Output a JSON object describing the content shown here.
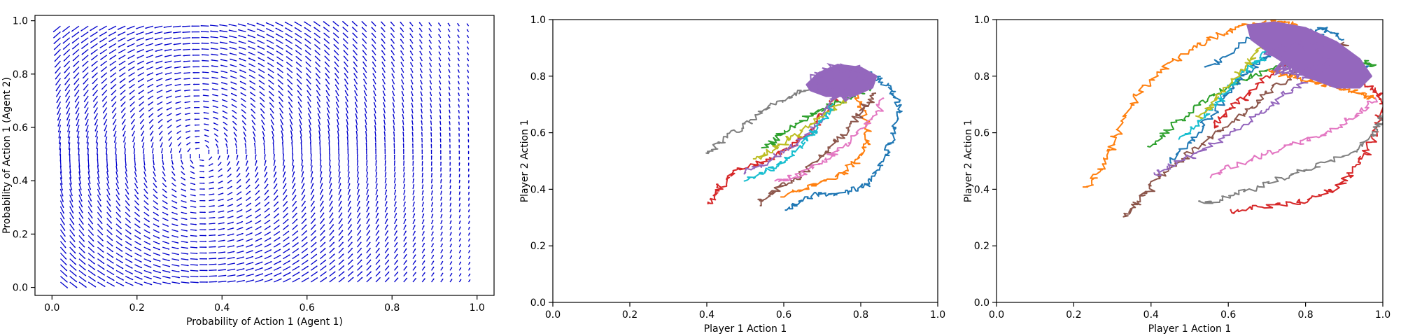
{
  "chart_data": [
    {
      "type": "quiver",
      "xlabel": "Probability of Action 1 (Agent 1)",
      "ylabel": "Probability of Action 1 (Agent 2)",
      "xlim": [
        -0.04,
        1.04
      ],
      "ylim": [
        -0.03,
        1.02
      ],
      "xticks": [
        0.0,
        0.2,
        0.4,
        0.6,
        0.8,
        1.0
      ],
      "xticklabels": [
        "0.0",
        "0.2",
        "0.4",
        "0.6",
        "0.8",
        "1.0"
      ],
      "yticks": [
        0.0,
        0.2,
        0.4,
        0.6,
        0.8,
        1.0
      ],
      "yticklabels": [
        "0.0",
        "0.2",
        "0.4",
        "0.6",
        "0.8",
        "1.0"
      ],
      "grid": false,
      "color": "#0000cc",
      "field": {
        "x_range": [
          0.02,
          0.98
        ],
        "y_range": [
          0.02,
          0.98
        ],
        "n": 45,
        "center": [
          0.35,
          0.5
        ]
      }
    },
    {
      "type": "line",
      "xlabel": "Player 1 Action 1",
      "ylabel": "Player 2 Action 1",
      "xlim": [
        0,
        1
      ],
      "ylim": [
        0,
        1
      ],
      "xticks": [
        0.0,
        0.2,
        0.4,
        0.6,
        0.8,
        1.0
      ],
      "xticklabels": [
        "0.0",
        "0.2",
        "0.4",
        "0.6",
        "0.8",
        "1.0"
      ],
      "yticks": [
        0.0,
        0.2,
        0.4,
        0.6,
        0.8,
        1.0
      ],
      "yticklabels": [
        "0.0",
        "0.2",
        "0.4",
        "0.6",
        "0.8",
        "1.0"
      ],
      "grid": false,
      "blob": {
        "color": "#9467bd",
        "center": [
          0.75,
          0.78
        ],
        "points": [
          [
            0.66,
            0.77
          ],
          [
            0.69,
            0.81
          ],
          [
            0.74,
            0.84
          ],
          [
            0.8,
            0.83
          ],
          [
            0.84,
            0.8
          ],
          [
            0.83,
            0.76
          ],
          [
            0.78,
            0.73
          ],
          [
            0.71,
            0.73
          ],
          [
            0.67,
            0.75
          ]
        ]
      },
      "series": [
        {
          "color": "#1f77b4",
          "points": [
            [
              0.6,
              0.33
            ],
            [
              0.68,
              0.38
            ],
            [
              0.76,
              0.39
            ],
            [
              0.82,
              0.42
            ],
            [
              0.86,
              0.5
            ],
            [
              0.88,
              0.58
            ],
            [
              0.9,
              0.68
            ],
            [
              0.88,
              0.75
            ],
            [
              0.84,
              0.8
            ],
            [
              0.8,
              0.82
            ]
          ]
        },
        {
          "color": "#ff7f0e",
          "points": [
            [
              0.6,
              0.38
            ],
            [
              0.68,
              0.42
            ],
            [
              0.76,
              0.46
            ],
            [
              0.8,
              0.52
            ],
            [
              0.82,
              0.6
            ],
            [
              0.8,
              0.7
            ],
            [
              0.78,
              0.76
            ]
          ]
        },
        {
          "color": "#2ca02c",
          "points": [
            [
              0.55,
              0.55
            ],
            [
              0.6,
              0.6
            ],
            [
              0.66,
              0.65
            ],
            [
              0.72,
              0.7
            ],
            [
              0.78,
              0.73
            ],
            [
              0.82,
              0.76
            ]
          ]
        },
        {
          "color": "#d62728",
          "points": [
            [
              0.41,
              0.35
            ],
            [
              0.43,
              0.4
            ],
            [
              0.48,
              0.47
            ],
            [
              0.55,
              0.5
            ],
            [
              0.62,
              0.55
            ],
            [
              0.68,
              0.62
            ],
            [
              0.72,
              0.7
            ],
            [
              0.76,
              0.76
            ]
          ]
        },
        {
          "color": "#9467bd",
          "points": [
            [
              0.5,
              0.46
            ],
            [
              0.56,
              0.5
            ],
            [
              0.62,
              0.55
            ],
            [
              0.68,
              0.62
            ],
            [
              0.72,
              0.7
            ],
            [
              0.75,
              0.76
            ]
          ]
        },
        {
          "color": "#8c564b",
          "points": [
            [
              0.53,
              0.35
            ],
            [
              0.58,
              0.4
            ],
            [
              0.64,
              0.45
            ],
            [
              0.7,
              0.52
            ],
            [
              0.76,
              0.6
            ],
            [
              0.8,
              0.68
            ],
            [
              0.84,
              0.74
            ]
          ]
        },
        {
          "color": "#e377c2",
          "points": [
            [
              0.58,
              0.43
            ],
            [
              0.64,
              0.45
            ],
            [
              0.7,
              0.5
            ],
            [
              0.76,
              0.56
            ],
            [
              0.82,
              0.64
            ],
            [
              0.86,
              0.72
            ]
          ]
        },
        {
          "color": "#7f7f7f",
          "points": [
            [
              0.4,
              0.52
            ],
            [
              0.45,
              0.58
            ],
            [
              0.52,
              0.65
            ],
            [
              0.6,
              0.72
            ],
            [
              0.68,
              0.77
            ],
            [
              0.72,
              0.79
            ]
          ]
        },
        {
          "color": "#bcbd22",
          "points": [
            [
              0.52,
              0.5
            ],
            [
              0.58,
              0.55
            ],
            [
              0.64,
              0.6
            ],
            [
              0.7,
              0.66
            ],
            [
              0.76,
              0.72
            ]
          ]
        },
        {
          "color": "#17becf",
          "points": [
            [
              0.5,
              0.43
            ],
            [
              0.56,
              0.47
            ],
            [
              0.62,
              0.52
            ],
            [
              0.66,
              0.58
            ],
            [
              0.7,
              0.64
            ],
            [
              0.73,
              0.7
            ]
          ]
        }
      ]
    },
    {
      "type": "line",
      "xlabel": "Player 1 Action 1",
      "ylabel": "Player 2 Action 1",
      "xlim": [
        0,
        1
      ],
      "ylim": [
        0,
        1
      ],
      "xticks": [
        0.0,
        0.2,
        0.4,
        0.6,
        0.8,
        1.0
      ],
      "xticklabels": [
        "0.0",
        "0.2",
        "0.4",
        "0.6",
        "0.8",
        "1.0"
      ],
      "yticks": [
        0.0,
        0.2,
        0.4,
        0.6,
        0.8,
        1.0
      ],
      "yticklabels": [
        "0.0",
        "0.2",
        "0.4",
        "0.6",
        "0.8",
        "1.0"
      ],
      "grid": false,
      "blob": {
        "color": "#9467bd",
        "center": [
          0.78,
          0.86
        ],
        "points": [
          [
            0.65,
            0.98
          ],
          [
            0.72,
            0.99
          ],
          [
            0.8,
            0.97
          ],
          [
            0.88,
            0.92
          ],
          [
            0.94,
            0.86
          ],
          [
            0.97,
            0.8
          ],
          [
            0.94,
            0.76
          ],
          [
            0.88,
            0.76
          ],
          [
            0.8,
            0.8
          ],
          [
            0.72,
            0.87
          ],
          [
            0.66,
            0.93
          ]
        ]
      },
      "series": [
        {
          "color": "#ff7f0e",
          "points": [
            [
              0.23,
              0.4
            ],
            [
              0.27,
              0.48
            ],
            [
              0.31,
              0.6
            ],
            [
              0.36,
              0.73
            ],
            [
              0.43,
              0.83
            ],
            [
              0.52,
              0.91
            ],
            [
              0.6,
              0.96
            ],
            [
              0.66,
              0.985
            ],
            [
              0.72,
              0.99
            ],
            [
              0.78,
              0.98
            ]
          ]
        },
        {
          "color": "#d62728",
          "points": [
            [
              0.6,
              0.32
            ],
            [
              0.7,
              0.34
            ],
            [
              0.8,
              0.36
            ],
            [
              0.88,
              0.4
            ],
            [
              0.94,
              0.5
            ],
            [
              0.98,
              0.6
            ],
            [
              1.0,
              0.7
            ],
            [
              0.98,
              0.76
            ]
          ]
        },
        {
          "color": "#7f7f7f",
          "points": [
            [
              0.53,
              0.35
            ],
            [
              0.62,
              0.38
            ],
            [
              0.72,
              0.43
            ],
            [
              0.82,
              0.48
            ],
            [
              0.92,
              0.53
            ],
            [
              0.98,
              0.6
            ],
            [
              1.0,
              0.66
            ]
          ]
        },
        {
          "color": "#e377c2",
          "points": [
            [
              0.55,
              0.45
            ],
            [
              0.65,
              0.5
            ],
            [
              0.75,
              0.55
            ],
            [
              0.85,
              0.6
            ],
            [
              0.93,
              0.66
            ],
            [
              0.98,
              0.72
            ]
          ]
        },
        {
          "color": "#8c564b",
          "points": [
            [
              0.33,
              0.3
            ],
            [
              0.37,
              0.36
            ],
            [
              0.41,
              0.43
            ],
            [
              0.47,
              0.5
            ],
            [
              0.55,
              0.58
            ],
            [
              0.63,
              0.66
            ],
            [
              0.7,
              0.74
            ],
            [
              0.78,
              0.82
            ],
            [
              0.86,
              0.88
            ],
            [
              0.9,
              0.92
            ]
          ]
        },
        {
          "color": "#9467bd",
          "points": [
            [
              0.4,
              0.45
            ],
            [
              0.48,
              0.5
            ],
            [
              0.56,
              0.56
            ],
            [
              0.64,
              0.63
            ],
            [
              0.72,
              0.71
            ],
            [
              0.8,
              0.79
            ],
            [
              0.86,
              0.86
            ]
          ]
        },
        {
          "color": "#2ca02c",
          "points": [
            [
              0.4,
              0.55
            ],
            [
              0.46,
              0.63
            ],
            [
              0.53,
              0.7
            ],
            [
              0.6,
              0.76
            ],
            [
              0.68,
              0.81
            ],
            [
              0.76,
              0.84
            ],
            [
              0.86,
              0.86
            ],
            [
              0.94,
              0.85
            ],
            [
              0.98,
              0.84
            ]
          ]
        },
        {
          "color": "#1f77b4",
          "points": [
            [
              0.45,
              0.5
            ],
            [
              0.52,
              0.6
            ],
            [
              0.58,
              0.7
            ],
            [
              0.62,
              0.78
            ],
            [
              0.67,
              0.84
            ],
            [
              0.72,
              0.9
            ],
            [
              0.78,
              0.95
            ],
            [
              0.85,
              0.97
            ],
            [
              0.9,
              0.93
            ]
          ]
        },
        {
          "color": "#17becf",
          "points": [
            [
              0.48,
              0.58
            ],
            [
              0.54,
              0.66
            ],
            [
              0.59,
              0.74
            ],
            [
              0.63,
              0.8
            ],
            [
              0.68,
              0.86
            ],
            [
              0.73,
              0.92
            ]
          ]
        },
        {
          "color": "#bcbd22",
          "points": [
            [
              0.52,
              0.65
            ],
            [
              0.57,
              0.72
            ],
            [
              0.62,
              0.8
            ],
            [
              0.66,
              0.86
            ],
            [
              0.7,
              0.92
            ]
          ]
        },
        {
          "color": "#d62728",
          "points": [
            [
              0.56,
              0.62
            ],
            [
              0.62,
              0.7
            ],
            [
              0.68,
              0.78
            ],
            [
              0.74,
              0.84
            ],
            [
              0.8,
              0.88
            ],
            [
              0.86,
              0.86
            ],
            [
              0.92,
              0.8
            ],
            [
              0.98,
              0.74
            ]
          ]
        },
        {
          "color": "#ff7f0e",
          "points": [
            [
              0.7,
              0.82
            ],
            [
              0.76,
              0.8
            ],
            [
              0.82,
              0.78
            ],
            [
              0.88,
              0.76
            ],
            [
              0.94,
              0.74
            ],
            [
              0.98,
              0.72
            ]
          ]
        },
        {
          "color": "#1f77b4",
          "points": [
            [
              0.55,
              0.83
            ],
            [
              0.65,
              0.93
            ],
            [
              0.74,
              0.97
            ],
            [
              0.82,
              0.95
            ],
            [
              0.9,
              0.88
            ],
            [
              0.96,
              0.82
            ]
          ]
        }
      ]
    }
  ]
}
